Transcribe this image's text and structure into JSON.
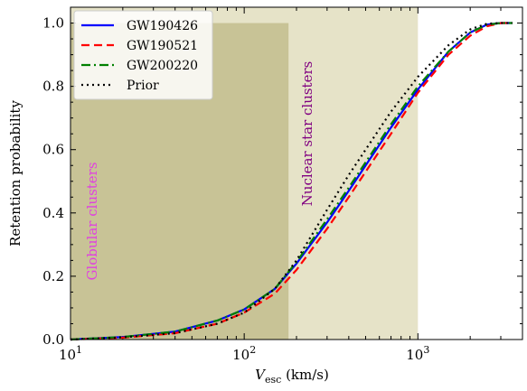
{
  "chart_data": {
    "type": "line",
    "xlabel_main": "V",
    "xlabel_sub": "esc",
    "xlabel_unit": " (km/s)",
    "ylabel": "Retention probability",
    "xscale": "log",
    "xlim": [
      10,
      4000
    ],
    "ylim": [
      0,
      1.05
    ],
    "x_ticks": [
      {
        "value": 10,
        "base": "10",
        "exp": "1"
      },
      {
        "value": 100,
        "base": "10",
        "exp": "2"
      },
      {
        "value": 1000,
        "base": "10",
        "exp": "3"
      }
    ],
    "y_ticks": [
      "0.0",
      "0.2",
      "0.4",
      "0.6",
      "0.8",
      "1.0"
    ],
    "y_tick_values": [
      0,
      0.2,
      0.4,
      0.6,
      0.8,
      1.0
    ],
    "legend_position": "top-left",
    "regions": [
      {
        "label": "Globular clusters",
        "x_start": 10,
        "x_end": 180,
        "y_top": 1.0,
        "fill": "#c8c396",
        "text_color": "#e040e0"
      },
      {
        "label": "Nuclear star clusters",
        "x_start": 10,
        "x_end": 1000,
        "y_top": 1.05,
        "fill": "#e6e3c8",
        "text_color": "#800080"
      }
    ],
    "series": [
      {
        "name": "GW190426",
        "color": "#0000ff",
        "dash": "",
        "x": [
          10,
          20,
          40,
          70,
          100,
          150,
          200,
          300,
          400,
          500,
          700,
          1000,
          1500,
          2000,
          2500,
          3000,
          3500
        ],
        "y": [
          0.0,
          0.008,
          0.025,
          0.06,
          0.095,
          0.16,
          0.24,
          0.37,
          0.47,
          0.55,
          0.67,
          0.79,
          0.91,
          0.97,
          0.995,
          1.0,
          1.0
        ]
      },
      {
        "name": "GW190521",
        "color": "#ff0000",
        "dash": "9,5",
        "x": [
          10,
          20,
          40,
          70,
          100,
          150,
          200,
          300,
          400,
          500,
          700,
          1000,
          1500,
          2000,
          2500,
          3000,
          3500
        ],
        "y": [
          0.0,
          0.006,
          0.02,
          0.05,
          0.085,
          0.145,
          0.22,
          0.35,
          0.45,
          0.53,
          0.65,
          0.78,
          0.9,
          0.96,
          0.99,
          1.0,
          1.0
        ]
      },
      {
        "name": "GW200220",
        "color": "#008000",
        "dash": "10,4,2,4",
        "x": [
          10,
          20,
          40,
          70,
          100,
          150,
          200,
          300,
          400,
          500,
          700,
          1000,
          1500,
          2000,
          2500,
          3000,
          3500
        ],
        "y": [
          0.0,
          0.008,
          0.025,
          0.06,
          0.095,
          0.16,
          0.245,
          0.38,
          0.48,
          0.56,
          0.68,
          0.8,
          0.91,
          0.97,
          0.995,
          1.0,
          1.0
        ]
      },
      {
        "name": "Prior",
        "color": "#000000",
        "dash": "2,4",
        "x": [
          10,
          20,
          40,
          70,
          100,
          150,
          200,
          300,
          400,
          500,
          700,
          1000,
          1500,
          2000,
          2500,
          3000,
          3500
        ],
        "y": [
          0.0,
          0.007,
          0.02,
          0.05,
          0.085,
          0.16,
          0.25,
          0.41,
          0.52,
          0.6,
          0.72,
          0.83,
          0.93,
          0.98,
          0.998,
          1.0,
          1.0
        ]
      }
    ]
  }
}
